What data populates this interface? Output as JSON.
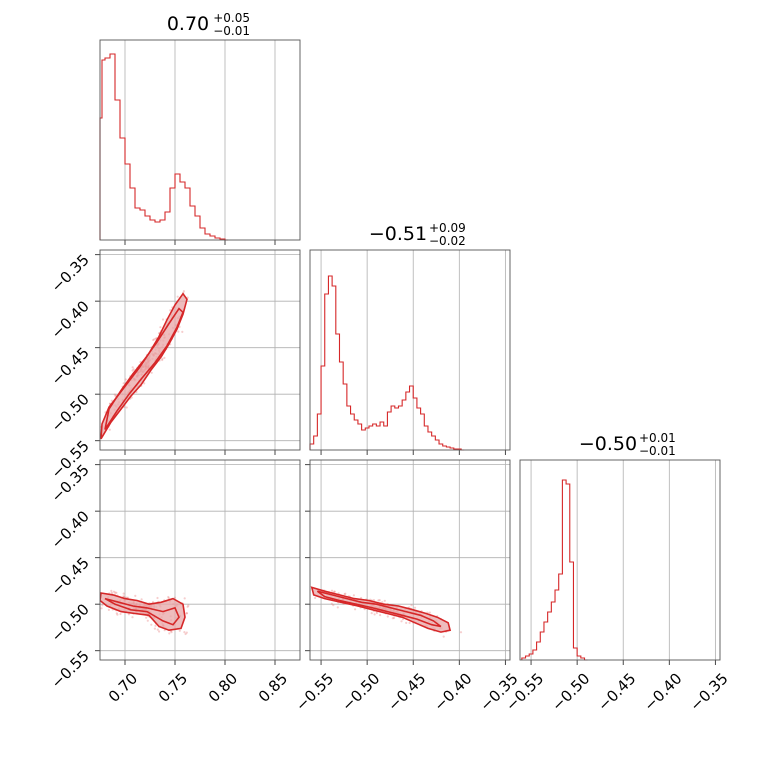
{
  "chart_data": [
    {
      "type": "histogram",
      "panel": "p00",
      "title_main": "0.70",
      "title_plus": "+0.05",
      "title_minus": "−0.01",
      "x_range": [
        0.675,
        0.875
      ],
      "x_ticks": [
        0.7,
        0.75,
        0.8,
        0.85
      ],
      "bins": [
        [
          0.675,
          0.61
        ],
        [
          0.677,
          0.9
        ],
        [
          0.68,
          0.91
        ],
        [
          0.685,
          0.93
        ],
        [
          0.69,
          0.7
        ],
        [
          0.695,
          0.51
        ],
        [
          0.7,
          0.38
        ],
        [
          0.705,
          0.26
        ],
        [
          0.71,
          0.16
        ],
        [
          0.715,
          0.15
        ],
        [
          0.72,
          0.12
        ],
        [
          0.725,
          0.1
        ],
        [
          0.73,
          0.09
        ],
        [
          0.735,
          0.1
        ],
        [
          0.74,
          0.14
        ],
        [
          0.745,
          0.26
        ],
        [
          0.75,
          0.33
        ],
        [
          0.755,
          0.29
        ],
        [
          0.76,
          0.26
        ],
        [
          0.765,
          0.17
        ],
        [
          0.77,
          0.12
        ],
        [
          0.775,
          0.06
        ],
        [
          0.78,
          0.03
        ],
        [
          0.785,
          0.02
        ],
        [
          0.79,
          0.01
        ],
        [
          0.795,
          0.005
        ],
        [
          0.8,
          0.0
        ]
      ],
      "color": "#d62728"
    },
    {
      "type": "histogram",
      "panel": "p11",
      "title_main": "−0.51",
      "title_plus": "+0.09",
      "title_minus": "−0.02",
      "x_range": [
        -0.562,
        -0.345
      ],
      "x_ticks": [
        -0.55,
        -0.5,
        -0.45,
        -0.4,
        -0.35
      ],
      "bins": [
        [
          -0.562,
          0.03
        ],
        [
          -0.558,
          0.07
        ],
        [
          -0.554,
          0.18
        ],
        [
          -0.55,
          0.42
        ],
        [
          -0.546,
          0.78
        ],
        [
          -0.542,
          0.87
        ],
        [
          -0.538,
          0.82
        ],
        [
          -0.534,
          0.58
        ],
        [
          -0.53,
          0.44
        ],
        [
          -0.526,
          0.33
        ],
        [
          -0.522,
          0.22
        ],
        [
          -0.518,
          0.18
        ],
        [
          -0.514,
          0.15
        ],
        [
          -0.51,
          0.13
        ],
        [
          -0.506,
          0.1
        ],
        [
          -0.502,
          0.11
        ],
        [
          -0.498,
          0.12
        ],
        [
          -0.494,
          0.13
        ],
        [
          -0.49,
          0.12
        ],
        [
          -0.486,
          0.14
        ],
        [
          -0.482,
          0.12
        ],
        [
          -0.478,
          0.19
        ],
        [
          -0.474,
          0.22
        ],
        [
          -0.47,
          0.21
        ],
        [
          -0.466,
          0.22
        ],
        [
          -0.462,
          0.25
        ],
        [
          -0.458,
          0.29
        ],
        [
          -0.454,
          0.32
        ],
        [
          -0.45,
          0.26
        ],
        [
          -0.446,
          0.21
        ],
        [
          -0.442,
          0.18
        ],
        [
          -0.438,
          0.12
        ],
        [
          -0.434,
          0.09
        ],
        [
          -0.43,
          0.07
        ],
        [
          -0.426,
          0.05
        ],
        [
          -0.422,
          0.03
        ],
        [
          -0.418,
          0.02
        ],
        [
          -0.414,
          0.015
        ],
        [
          -0.41,
          0.01
        ],
        [
          -0.406,
          0.005
        ],
        [
          -0.402,
          0.005
        ],
        [
          -0.398,
          0.0
        ]
      ],
      "color": "#d62728"
    },
    {
      "type": "histogram",
      "panel": "p22",
      "title_main": "−0.50",
      "title_plus": "+0.01",
      "title_minus": "−0.01",
      "x_range": [
        -0.562,
        -0.345
      ],
      "x_ticks": [
        -0.55,
        -0.5,
        -0.45,
        -0.4,
        -0.35
      ],
      "bins": [
        [
          -0.56,
          0.01
        ],
        [
          -0.556,
          0.02
        ],
        [
          -0.552,
          0.03
        ],
        [
          -0.548,
          0.05
        ],
        [
          -0.544,
          0.09
        ],
        [
          -0.54,
          0.14
        ],
        [
          -0.536,
          0.19
        ],
        [
          -0.532,
          0.24
        ],
        [
          -0.528,
          0.29
        ],
        [
          -0.524,
          0.35
        ],
        [
          -0.52,
          0.43
        ],
        [
          -0.516,
          0.9
        ],
        [
          -0.512,
          0.88
        ],
        [
          -0.508,
          0.49
        ],
        [
          -0.504,
          0.06
        ],
        [
          -0.5,
          0.02
        ],
        [
          -0.496,
          0.01
        ],
        [
          -0.492,
          0.0
        ]
      ],
      "color": "#d62728"
    },
    {
      "type": "scatter",
      "panel": "p10",
      "x_range": [
        0.675,
        0.875
      ],
      "y_range": [
        -0.56,
        -0.345
      ],
      "x_ticks": [
        0.7,
        0.75,
        0.8,
        0.85
      ],
      "y_ticks": [
        -0.35,
        -0.4,
        -0.45,
        -0.5,
        -0.55
      ],
      "y_tick_labels": [
        "−0.35",
        "−0.40",
        "−0.45",
        "−0.50",
        "−0.55"
      ],
      "contour_outer": [
        [
          0.676,
          -0.548
        ],
        [
          0.686,
          -0.53
        ],
        [
          0.696,
          -0.516
        ],
        [
          0.706,
          -0.502
        ],
        [
          0.716,
          -0.49
        ],
        [
          0.726,
          -0.474
        ],
        [
          0.736,
          -0.46
        ],
        [
          0.744,
          -0.446
        ],
        [
          0.752,
          -0.43
        ],
        [
          0.758,
          -0.414
        ],
        [
          0.762,
          -0.398
        ],
        [
          0.758,
          -0.392
        ],
        [
          0.75,
          -0.404
        ],
        [
          0.742,
          -0.42
        ],
        [
          0.734,
          -0.438
        ],
        [
          0.724,
          -0.456
        ],
        [
          0.714,
          -0.472
        ],
        [
          0.704,
          -0.486
        ],
        [
          0.694,
          -0.5
        ],
        [
          0.684,
          -0.514
        ],
        [
          0.677,
          -0.532
        ]
      ],
      "contour_inner": [
        [
          0.68,
          -0.538
        ],
        [
          0.692,
          -0.518
        ],
        [
          0.704,
          -0.5
        ],
        [
          0.716,
          -0.484
        ],
        [
          0.73,
          -0.466
        ],
        [
          0.742,
          -0.448
        ],
        [
          0.752,
          -0.428
        ],
        [
          0.758,
          -0.412
        ],
        [
          0.754,
          -0.408
        ],
        [
          0.744,
          -0.424
        ],
        [
          0.732,
          -0.444
        ],
        [
          0.72,
          -0.462
        ],
        [
          0.708,
          -0.478
        ],
        [
          0.696,
          -0.496
        ],
        [
          0.684,
          -0.516
        ]
      ],
      "color": "#d62728"
    },
    {
      "type": "scatter",
      "panel": "p20",
      "x_range": [
        0.675,
        0.875
      ],
      "y_range": [
        -0.56,
        -0.345
      ],
      "x_ticks": [
        0.7,
        0.75,
        0.8,
        0.85
      ],
      "x_tick_labels": [
        "0.70",
        "0.75",
        "0.80",
        "0.85"
      ],
      "y_ticks": [
        -0.35,
        -0.4,
        -0.45,
        -0.5,
        -0.55
      ],
      "y_tick_labels": [
        "−0.35",
        "−0.40",
        "−0.45",
        "−0.50",
        "−0.55"
      ],
      "contour_outer": [
        [
          0.676,
          -0.488
        ],
        [
          0.688,
          -0.49
        ],
        [
          0.7,
          -0.494
        ],
        [
          0.712,
          -0.496
        ],
        [
          0.724,
          -0.5
        ],
        [
          0.736,
          -0.498
        ],
        [
          0.748,
          -0.494
        ],
        [
          0.758,
          -0.5
        ],
        [
          0.76,
          -0.514
        ],
        [
          0.756,
          -0.526
        ],
        [
          0.744,
          -0.528
        ],
        [
          0.734,
          -0.524
        ],
        [
          0.724,
          -0.512
        ],
        [
          0.71,
          -0.51
        ],
        [
          0.696,
          -0.508
        ],
        [
          0.682,
          -0.502
        ],
        [
          0.675,
          -0.496
        ]
      ],
      "contour_inner": [
        [
          0.68,
          -0.494
        ],
        [
          0.694,
          -0.498
        ],
        [
          0.708,
          -0.502
        ],
        [
          0.722,
          -0.504
        ],
        [
          0.738,
          -0.508
        ],
        [
          0.75,
          -0.504
        ],
        [
          0.754,
          -0.514
        ],
        [
          0.748,
          -0.522
        ],
        [
          0.738,
          -0.518
        ],
        [
          0.722,
          -0.508
        ],
        [
          0.706,
          -0.506
        ],
        [
          0.69,
          -0.5
        ]
      ],
      "color": "#d62728"
    },
    {
      "type": "scatter",
      "panel": "p21",
      "x_range": [
        -0.562,
        -0.345
      ],
      "y_range": [
        -0.56,
        -0.345
      ],
      "x_ticks": [
        -0.55,
        -0.5,
        -0.45,
        -0.4,
        -0.35
      ],
      "x_tick_labels": [
        "−0.55",
        "−0.50",
        "−0.45",
        "−0.40",
        "−0.35"
      ],
      "y_ticks": [
        -0.35,
        -0.4,
        -0.45,
        -0.5,
        -0.55
      ],
      "contour_outer": [
        [
          -0.56,
          -0.482
        ],
        [
          -0.546,
          -0.486
        ],
        [
          -0.53,
          -0.49
        ],
        [
          -0.514,
          -0.494
        ],
        [
          -0.498,
          -0.496
        ],
        [
          -0.482,
          -0.5
        ],
        [
          -0.466,
          -0.502
        ],
        [
          -0.45,
          -0.506
        ],
        [
          -0.436,
          -0.51
        ],
        [
          -0.424,
          -0.514
        ],
        [
          -0.412,
          -0.52
        ],
        [
          -0.41,
          -0.528
        ],
        [
          -0.42,
          -0.53
        ],
        [
          -0.434,
          -0.526
        ],
        [
          -0.448,
          -0.52
        ],
        [
          -0.462,
          -0.514
        ],
        [
          -0.478,
          -0.51
        ],
        [
          -0.494,
          -0.506
        ],
        [
          -0.51,
          -0.502
        ],
        [
          -0.528,
          -0.498
        ],
        [
          -0.546,
          -0.494
        ],
        [
          -0.558,
          -0.49
        ]
      ],
      "contour_inner": [
        [
          -0.554,
          -0.486
        ],
        [
          -0.538,
          -0.49
        ],
        [
          -0.522,
          -0.494
        ],
        [
          -0.506,
          -0.498
        ],
        [
          -0.49,
          -0.5
        ],
        [
          -0.474,
          -0.504
        ],
        [
          -0.458,
          -0.508
        ],
        [
          -0.442,
          -0.512
        ],
        [
          -0.428,
          -0.518
        ],
        [
          -0.42,
          -0.524
        ],
        [
          -0.43,
          -0.522
        ],
        [
          -0.446,
          -0.516
        ],
        [
          -0.462,
          -0.512
        ],
        [
          -0.478,
          -0.508
        ],
        [
          -0.494,
          -0.504
        ],
        [
          -0.512,
          -0.5
        ],
        [
          -0.53,
          -0.496
        ],
        [
          -0.546,
          -0.492
        ]
      ],
      "color": "#d62728"
    }
  ]
}
